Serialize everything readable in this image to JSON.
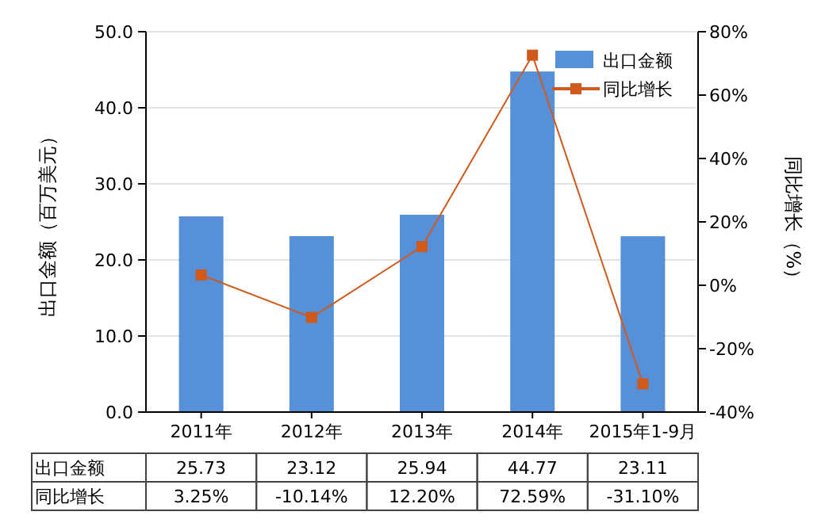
{
  "chart_data": {
    "type": "bar",
    "categories": [
      "2011年",
      "2012年",
      "2013年",
      "2014年",
      "2015年1-9月"
    ],
    "ylabel": "出口金额（百万美元）",
    "y2label": "同比增长（%）",
    "series": [
      {
        "name": "出口金额",
        "type": "bar",
        "color": "#5590d8",
        "values": [
          25.73,
          23.12,
          25.94,
          44.77,
          23.11
        ],
        "value_labels": [
          "25.73",
          "23.12",
          "25.94",
          "44.77",
          "23.11"
        ]
      },
      {
        "name": "同比增长",
        "type": "line",
        "axis": "y2",
        "color": "#d05a1c",
        "marker": "square",
        "values": [
          3.25,
          -10.14,
          12.2,
          72.59,
          -31.1
        ],
        "value_labels": [
          "3.25%",
          "-10.14%",
          "12.20%",
          "72.59%",
          "-31.10%"
        ]
      }
    ],
    "ylim": [
      0,
      50
    ],
    "yticks": [
      {
        "value": 0,
        "label": "0.0"
      },
      {
        "value": 10,
        "label": "10.0"
      },
      {
        "value": 20,
        "label": "20.0"
      },
      {
        "value": 30,
        "label": "30.0"
      },
      {
        "value": 40,
        "label": "40.0"
      },
      {
        "value": 50,
        "label": "50.0"
      }
    ],
    "y2lim": [
      -40,
      80
    ],
    "y2ticks": [
      {
        "value": -40,
        "label": "-40%"
      },
      {
        "value": -20,
        "label": "-20%"
      },
      {
        "value": 0,
        "label": "0%"
      },
      {
        "value": 20,
        "label": "20%"
      },
      {
        "value": 40,
        "label": "40%"
      },
      {
        "value": 60,
        "label": "60%"
      },
      {
        "value": 80,
        "label": "80%"
      }
    ],
    "grid": "y",
    "legend": "top right"
  }
}
